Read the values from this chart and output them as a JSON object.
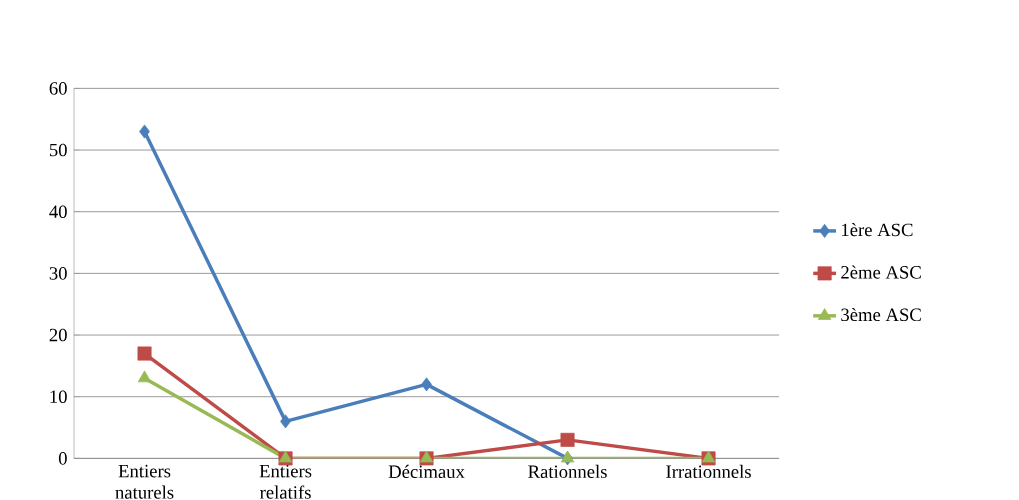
{
  "chart_data": {
    "type": "line",
    "categories": [
      "Entiers naturels",
      "Entiers relatifs",
      "Décimaux",
      "Rationnels",
      "Irrationnels"
    ],
    "series": [
      {
        "name": "1ère ASC",
        "color": "#4a7ebb",
        "marker": "diamond",
        "values": [
          53,
          6,
          12,
          0,
          null
        ]
      },
      {
        "name": "2ème ASC",
        "color": "#be4b48",
        "marker": "square",
        "values": [
          17,
          0,
          0,
          3,
          0
        ]
      },
      {
        "name": "3ème ASC",
        "color": "#98b954",
        "marker": "triangle",
        "values": [
          13,
          0,
          0,
          0,
          0
        ]
      }
    ],
    "ylim": [
      0,
      60
    ],
    "yticks": [
      0,
      10,
      20,
      30,
      40,
      50,
      60
    ],
    "grid": "y",
    "legend": "right"
  }
}
